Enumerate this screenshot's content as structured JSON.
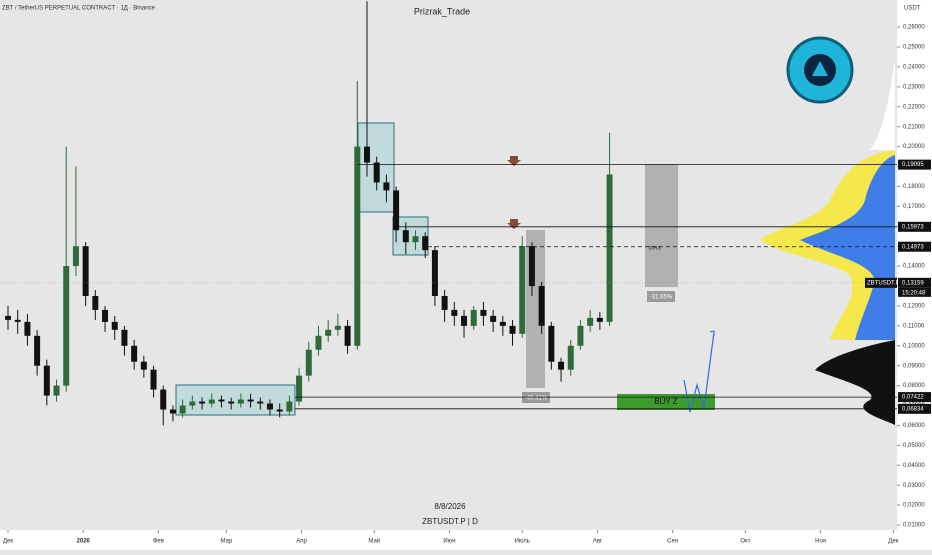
{
  "chart_data": {
    "type": "candlestick",
    "title": "Prizrak_Trade",
    "subtitle": "ZBT / TetherUS PERPETUAL CONTRACT · 1Д · Binance",
    "currency": "USDT",
    "date_label": "8/8/2026",
    "footer": "ZBTUSDT.P | D",
    "up_color": "#2f6b3a",
    "down_color": "#111111",
    "x": [
      0,
      4,
      8,
      12,
      16,
      20,
      24,
      28,
      32,
      36,
      40,
      44,
      48,
      52,
      56,
      60,
      64,
      68,
      72,
      76,
      80,
      84,
      88,
      92,
      96,
      100,
      104,
      108,
      112,
      116,
      120,
      124,
      128,
      132,
      136,
      140,
      144,
      148,
      152,
      156,
      160,
      164,
      168,
      172,
      176,
      180,
      184,
      188,
      192,
      196,
      200,
      204,
      208,
      212,
      216,
      220,
      224,
      228,
      232,
      236,
      240,
      244,
      248
    ],
    "open": [
      0.115,
      0.113,
      0.112,
      0.105,
      0.09,
      0.075,
      0.08,
      0.14,
      0.15,
      0.125,
      0.118,
      0.112,
      0.108,
      0.1,
      0.092,
      0.088,
      0.078,
      0.068,
      0.066,
      0.07,
      0.072,
      0.071,
      0.073,
      0.072,
      0.071,
      0.073,
      0.072,
      0.071,
      0.068,
      0.067,
      0.072,
      0.085,
      0.098,
      0.105,
      0.108,
      0.11,
      0.1,
      0.2,
      0.192,
      0.182,
      0.178,
      0.158,
      0.152,
      0.155,
      0.148,
      0.125,
      0.118,
      0.115,
      0.11,
      0.118,
      0.115,
      0.112,
      0.11,
      0.106,
      0.15,
      0.13,
      0.11,
      0.092,
      0.088,
      0.1,
      0.11,
      0.114,
      0.112
    ],
    "high": [
      0.12,
      0.118,
      0.116,
      0.108,
      0.093,
      0.083,
      0.2,
      0.19,
      0.152,
      0.128,
      0.12,
      0.115,
      0.11,
      0.103,
      0.095,
      0.09,
      0.08,
      0.07,
      0.073,
      0.075,
      0.074,
      0.076,
      0.075,
      0.074,
      0.076,
      0.076,
      0.074,
      0.073,
      0.071,
      0.075,
      0.089,
      0.102,
      0.11,
      0.113,
      0.116,
      0.113,
      0.233,
      0.273,
      0.195,
      0.186,
      0.18,
      0.162,
      0.158,
      0.157,
      0.15,
      0.128,
      0.122,
      0.118,
      0.12,
      0.122,
      0.118,
      0.115,
      0.113,
      0.155,
      0.152,
      0.132,
      0.112,
      0.094,
      0.103,
      0.113,
      0.118,
      0.117,
      0.207
    ],
    "low": [
      0.108,
      0.106,
      0.1,
      0.085,
      0.07,
      0.072,
      0.077,
      0.135,
      0.12,
      0.113,
      0.107,
      0.103,
      0.095,
      0.088,
      0.084,
      0.074,
      0.06,
      0.062,
      0.064,
      0.068,
      0.068,
      0.069,
      0.069,
      0.068,
      0.069,
      0.069,
      0.068,
      0.065,
      0.064,
      0.065,
      0.07,
      0.082,
      0.095,
      0.102,
      0.105,
      0.096,
      0.098,
      0.185,
      0.178,
      0.172,
      0.152,
      0.146,
      0.148,
      0.144,
      0.12,
      0.112,
      0.11,
      0.104,
      0.108,
      0.11,
      0.107,
      0.105,
      0.1,
      0.104,
      0.125,
      0.106,
      0.088,
      0.082,
      0.085,
      0.098,
      0.107,
      0.108,
      0.11
    ],
    "close": [
      0.113,
      0.112,
      0.105,
      0.09,
      0.075,
      0.08,
      0.14,
      0.15,
      0.125,
      0.118,
      0.112,
      0.108,
      0.1,
      0.092,
      0.088,
      0.078,
      0.068,
      0.066,
      0.07,
      0.072,
      0.071,
      0.073,
      0.072,
      0.071,
      0.073,
      0.072,
      0.071,
      0.068,
      0.067,
      0.072,
      0.085,
      0.098,
      0.105,
      0.108,
      0.11,
      0.1,
      0.2,
      0.192,
      0.182,
      0.178,
      0.158,
      0.152,
      0.155,
      0.148,
      0.125,
      0.118,
      0.115,
      0.11,
      0.118,
      0.115,
      0.112,
      0.11,
      0.106,
      0.15,
      0.13,
      0.11,
      0.092,
      0.088,
      0.1,
      0.11,
      0.114,
      0.112,
      0.186
    ],
    "xlim": [
      -3.3,
      366.5
    ],
    "xticks": [
      {
        "value": 0,
        "label": "Дек"
      },
      {
        "value": 31,
        "label": "2026"
      },
      {
        "value": 62,
        "label": "Фев"
      },
      {
        "value": 90,
        "label": "Мар"
      },
      {
        "value": 121,
        "label": "Апр"
      },
      {
        "value": 151,
        "label": "Май"
      },
      {
        "value": 182,
        "label": "Июн"
      },
      {
        "value": 212,
        "label": "Июль"
      },
      {
        "value": 243,
        "label": "Авг"
      },
      {
        "value": 274,
        "label": "Сен"
      },
      {
        "value": 304,
        "label": "Окт"
      },
      {
        "value": 335,
        "label": "Ноя"
      },
      {
        "value": 365,
        "label": "Дек"
      }
    ],
    "ylim": [
      0.0075,
      0.2736
    ],
    "yticks": [
      {
        "value": 0.01,
        "label": "0,01000"
      },
      {
        "value": 0.02,
        "label": "0,02000"
      },
      {
        "value": 0.03,
        "label": "0,03000"
      },
      {
        "value": 0.04,
        "label": "0,04000"
      },
      {
        "value": 0.05,
        "label": "0,05000"
      },
      {
        "value": 0.06,
        "label": "0,06000"
      },
      {
        "value": 0.07,
        "label": "0,07000"
      },
      {
        "value": 0.08,
        "label": "0,08000"
      },
      {
        "value": 0.09,
        "label": "0,09000"
      },
      {
        "value": 0.1,
        "label": "0,10000"
      },
      {
        "value": 0.11,
        "label": "0,11000"
      },
      {
        "value": 0.12,
        "label": "0,12000"
      },
      {
        "value": 0.13,
        "label": "0,13000"
      },
      {
        "value": 0.14,
        "label": "0,14000"
      },
      {
        "value": 0.15,
        "label": "0,15000"
      },
      {
        "value": 0.16,
        "label": "0,16000"
      },
      {
        "value": 0.17,
        "label": "0,17000"
      },
      {
        "value": 0.18,
        "label": "0,18000"
      },
      {
        "value": 0.19,
        "label": "0,19000"
      },
      {
        "value": 0.2,
        "label": "0,20000"
      },
      {
        "value": 0.21,
        "label": "0,21000"
      },
      {
        "value": 0.22,
        "label": "0,22000"
      },
      {
        "value": 0.23,
        "label": "0,23000"
      },
      {
        "value": 0.24,
        "label": "0,24000"
      },
      {
        "value": 0.25,
        "label": "0,25000"
      },
      {
        "value": 0.26,
        "label": "0,26000"
      }
    ],
    "levels": [
      {
        "value": 0.19095,
        "label": "0,19095"
      },
      {
        "value": 0.15973,
        "label": "0,15973"
      },
      {
        "value": 0.14973,
        "label": "0,14973"
      },
      {
        "value": 0.07422,
        "label": "0,07422"
      },
      {
        "value": 0.06834,
        "label": "0,06834"
      }
    ],
    "current_price": {
      "value": 0.13159,
      "label": "0,13159"
    },
    "symbol_label": "ZBTUSDT.P",
    "countdown": "15:20:48",
    "annotations": {
      "zone": "зона",
      "drop_right": "-31,65%",
      "drop_left": "-49,41%",
      "buy": "BUY Z"
    }
  }
}
